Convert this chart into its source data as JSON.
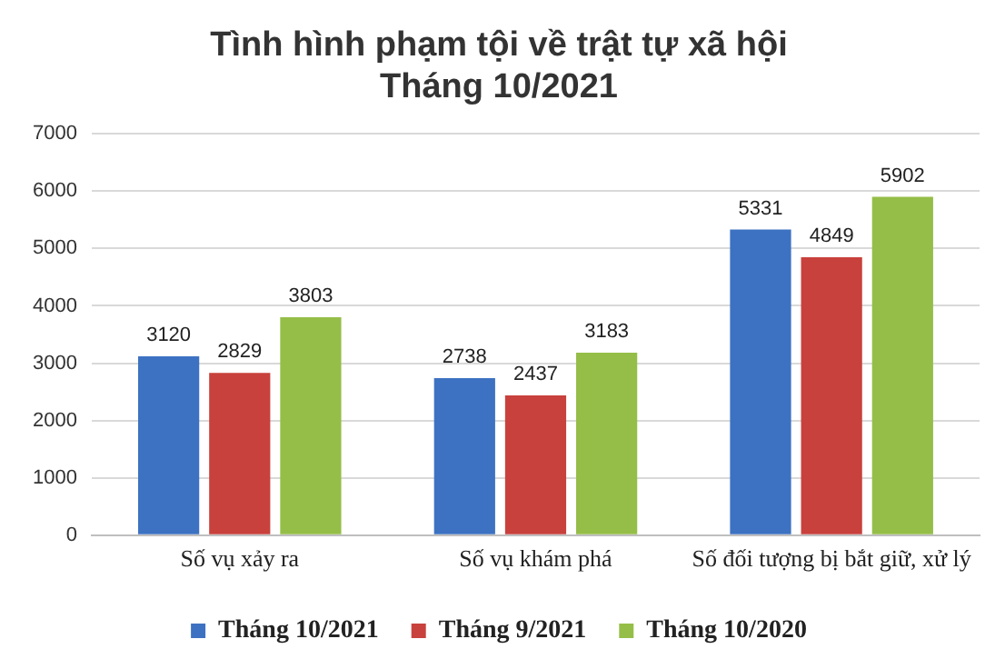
{
  "chart_data": {
    "type": "bar",
    "title": "Tình hình phạm tội về trật tự xã hội\nTháng 10/2021",
    "categories": [
      "Số vụ xảy ra",
      "Số vụ khám phá",
      "Số đối tượng bị bắt giữ, xử lý"
    ],
    "series": [
      {
        "name": "Tháng 10/2021",
        "color": "#3d72c2",
        "values": [
          3120,
          2738,
          5331
        ]
      },
      {
        "name": "Tháng 9/2021",
        "color": "#c8413c",
        "values": [
          2829,
          2437,
          4849
        ]
      },
      {
        "name": "Tháng 10/2020",
        "color": "#95be48",
        "values": [
          3803,
          3183,
          5902
        ]
      }
    ],
    "ylim": [
      0,
      7000
    ],
    "yticks": [
      0,
      1000,
      2000,
      3000,
      4000,
      5000,
      6000,
      7000
    ],
    "grid": "y",
    "legend": "bottom",
    "data_labels": true
  }
}
